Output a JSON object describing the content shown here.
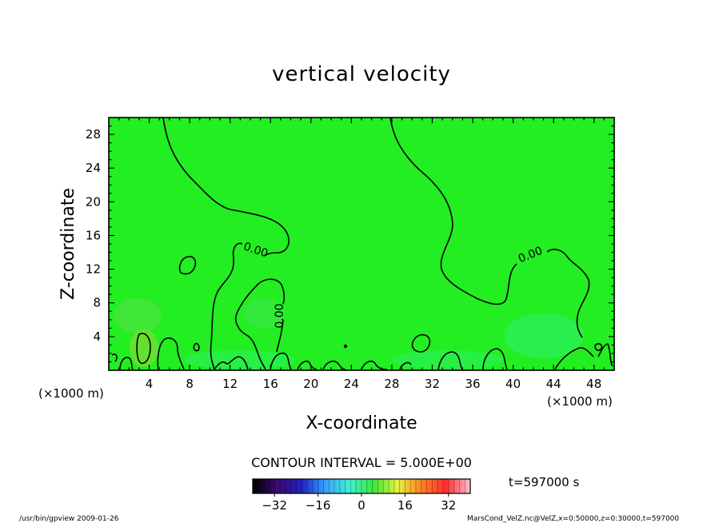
{
  "chart_data": {
    "type": "heatmap",
    "title": "vertical velocity",
    "xlabel": "X-coordinate",
    "ylabel": "Z-coordinate",
    "x_unit": "(×1000 m)",
    "z_unit": "(×1000 m)",
    "xlim": [
      0,
      50
    ],
    "ylim": [
      0,
      30
    ],
    "x_ticks": [
      4,
      8,
      12,
      16,
      20,
      24,
      28,
      32,
      36,
      40,
      44,
      48
    ],
    "y_ticks": [
      4,
      8,
      12,
      16,
      20,
      24,
      28
    ],
    "field_background_color": "#22ee22",
    "contour_interval_text": "CONTOUR INTERVAL = 5.000E+00",
    "contour_labels": [
      "0.00",
      "0.00",
      "0.00"
    ],
    "colorbar": {
      "min": -40,
      "max": 40,
      "ticks": [
        -32,
        -16,
        0,
        16,
        32
      ],
      "colormap": [
        "#000000",
        "#3a0a6e",
        "#2020c0",
        "#3aa0ff",
        "#40f0d0",
        "#3ce83c",
        "#e8f040",
        "#ff8020",
        "#ff3030",
        "#ffc0d0"
      ]
    },
    "time_label": "t=597000 s",
    "footer_left": "/usr/bin/gpview  2009-01-26",
    "footer_right": "MarsCond_VelZ.nc@VelZ,x=0:50000,z=0:30000,t=597000"
  }
}
